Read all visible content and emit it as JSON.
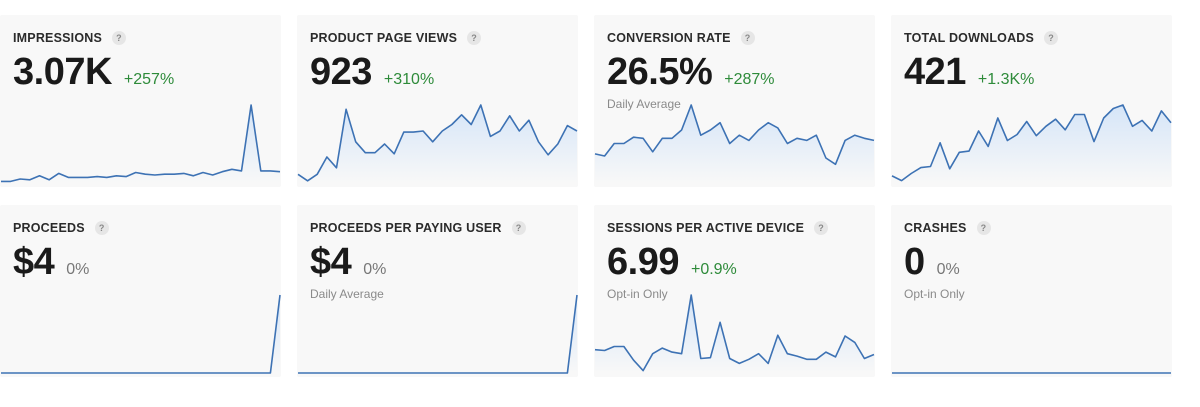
{
  "colors": {
    "line": "#3d72b4",
    "fill_top": "#d5e5f8",
    "fill_bottom": "#f8f8f8",
    "positive": "#2e8b3a"
  },
  "cards": [
    {
      "label": "IMPRESSIONS",
      "value": "3.07K",
      "change": "+257%",
      "change_tone": "positive",
      "subtitle": "",
      "spark": [
        2,
        2,
        5,
        4,
        9,
        4,
        12,
        7,
        7,
        7,
        8,
        7,
        9,
        8,
        13,
        11,
        10,
        11,
        11,
        12,
        9,
        13,
        10,
        14,
        17,
        15,
        97,
        15,
        15,
        14
      ]
    },
    {
      "label": "PRODUCT PAGE VIEWS",
      "value": "923",
      "change": "+310%",
      "change_tone": "positive",
      "subtitle": "",
      "spark": [
        8,
        2,
        8,
        24,
        14,
        68,
        38,
        28,
        28,
        36,
        27,
        47,
        47,
        48,
        38,
        48,
        54,
        63,
        54,
        72,
        43,
        48,
        62,
        48,
        58,
        38,
        26,
        36,
        53,
        48
      ]
    },
    {
      "label": "CONVERSION RATE",
      "value": "26.5%",
      "change": "+287%",
      "change_tone": "positive",
      "subtitle": "Daily Average",
      "spark": [
        28,
        26,
        38,
        38,
        44,
        43,
        30,
        43,
        43,
        51,
        75,
        46,
        51,
        58,
        38,
        46,
        41,
        51,
        58,
        53,
        38,
        43,
        41,
        46,
        24,
        18,
        41,
        46,
        43,
        41
      ]
    },
    {
      "label": "TOTAL DOWNLOADS",
      "value": "421",
      "change": "+1.3K%",
      "change_tone": "positive",
      "subtitle": "",
      "spark": [
        6,
        2,
        8,
        13,
        14,
        34,
        12,
        26,
        27,
        44,
        31,
        55,
        36,
        41,
        52,
        40,
        48,
        54,
        45,
        58,
        58,
        35,
        55,
        63,
        66,
        48,
        53,
        44,
        61,
        51
      ]
    },
    {
      "label": "PROCEEDS",
      "value": "$4",
      "change": "0%",
      "change_tone": "neutral",
      "subtitle": "",
      "spark": [
        0,
        0,
        0,
        0,
        0,
        0,
        0,
        0,
        0,
        0,
        0,
        0,
        0,
        0,
        0,
        0,
        0,
        0,
        0,
        0,
        0,
        0,
        0,
        0,
        0,
        0,
        0,
        0,
        0,
        4
      ]
    },
    {
      "label": "PROCEEDS PER PAYING USER",
      "value": "$4",
      "change": "0%",
      "change_tone": "neutral",
      "subtitle": "Daily Average",
      "spark": [
        0,
        0,
        0,
        0,
        0,
        0,
        0,
        0,
        0,
        0,
        0,
        0,
        0,
        0,
        0,
        0,
        0,
        0,
        0,
        0,
        0,
        0,
        0,
        0,
        0,
        0,
        0,
        0,
        0,
        4
      ]
    },
    {
      "label": "SESSIONS PER ACTIVE DEVICE",
      "value": "6.99",
      "change": "+0.9%",
      "change_tone": "positive",
      "subtitle": "Opt-in Only",
      "spark": [
        29,
        28,
        33,
        33,
        16,
        3,
        24,
        31,
        26,
        24,
        97,
        18,
        19,
        63,
        18,
        12,
        17,
        24,
        12,
        47,
        24,
        21,
        17,
        17,
        26,
        20,
        46,
        38,
        18,
        23
      ]
    },
    {
      "label": "CRASHES",
      "value": "0",
      "change": "0%",
      "change_tone": "neutral",
      "subtitle": "Opt-in Only",
      "spark": [
        0,
        0,
        0,
        0,
        0,
        0,
        0,
        0,
        0,
        0,
        0,
        0,
        0,
        0,
        0,
        0,
        0,
        0,
        0,
        0,
        0,
        0,
        0,
        0,
        0,
        0,
        0,
        0,
        0,
        0
      ]
    }
  ]
}
